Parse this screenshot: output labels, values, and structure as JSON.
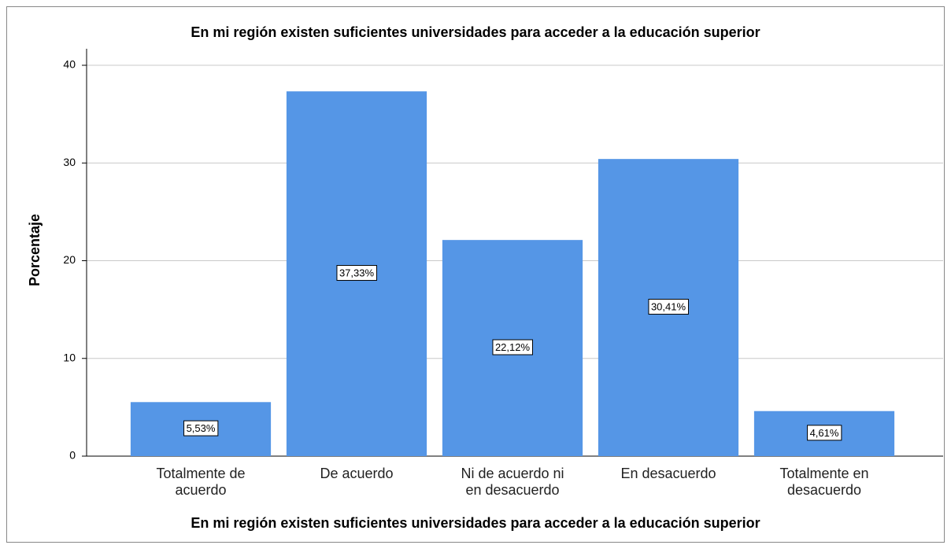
{
  "chart_data": {
    "type": "bar",
    "title": "En mi región existen suficientes universidades para acceder a la educación superior",
    "x_label": "En mi región existen suficientes universidades para acceder a la educación superior",
    "y_label": "Porcentaje",
    "categories": [
      "Totalmente de acuerdo",
      "De acuerdo",
      "Ni de acuerdo ni en desacuerdo",
      "En desacuerdo",
      "Totalmente en desacuerdo"
    ],
    "values": [
      5.53,
      37.33,
      22.12,
      30.41,
      4.61
    ],
    "value_labels": [
      "5,53%",
      "37,33%",
      "22,12%",
      "30,41%",
      "4,61%"
    ],
    "color": "#5596e6",
    "ylim": [
      0,
      40
    ],
    "yticks": [
      0,
      10,
      20,
      30,
      40
    ],
    "grid": true
  }
}
